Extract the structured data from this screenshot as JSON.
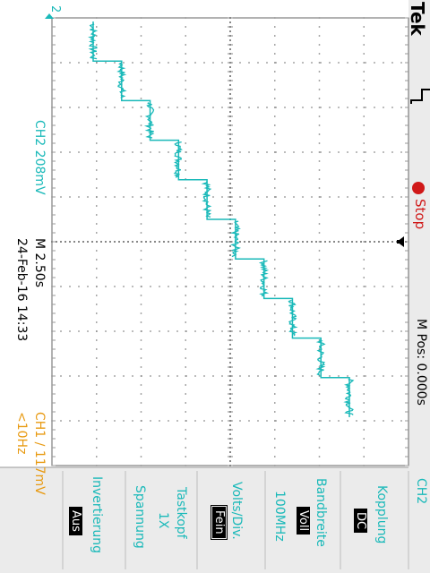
{
  "header": {
    "brand": "Tek",
    "run_state": "Stop",
    "run_state_color": "#d01818",
    "m_pos": "M Pos: 0.000s"
  },
  "trace": {
    "channel_marker": "2",
    "color": "#1ab9b9",
    "step_levels": [
      1,
      2,
      3,
      4,
      5,
      6,
      7,
      8,
      9,
      10
    ],
    "noise_band": 0.35
  },
  "status": {
    "ch2_scale": "CH2  208mV",
    "timebase": "M 2.50s",
    "datetime": "24-Feb-16 14:33",
    "trigger": "CH1 ∕ 117mV",
    "freq": "<10Hz"
  },
  "menu": {
    "title": "CH2",
    "items": [
      {
        "label": "Kopplung",
        "value": "DC"
      },
      {
        "label": "Bandbreite",
        "value": "Voll",
        "sub": "100MHz"
      },
      {
        "label": "Volts/Div.",
        "value": "Fein"
      },
      {
        "label": "Tastkopf",
        "value": "1X",
        "sub": "Spannung"
      },
      {
        "label": "Invertierung",
        "value": "Aus"
      }
    ]
  },
  "colors": {
    "cyan": "#1ab9b9",
    "orange": "#e89a12",
    "grid": "#888888"
  }
}
